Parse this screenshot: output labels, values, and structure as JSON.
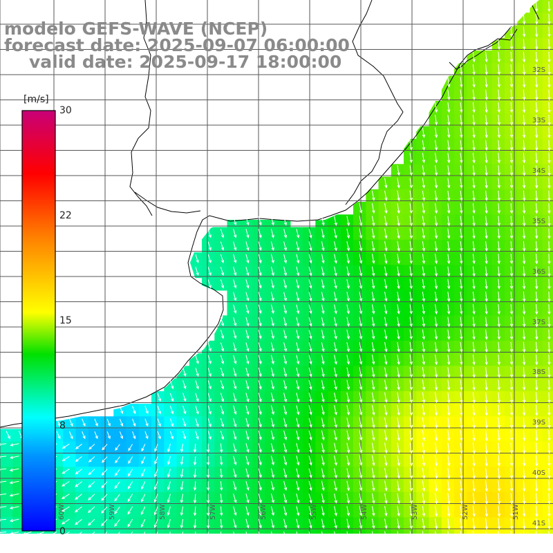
{
  "title": {
    "line1": "modelo GEFS-WAVE (NCEP)",
    "line2": "forecast date: 2025-09-07 06:00:00",
    "line3": "valid date: 2025-09-17 18:00:00"
  },
  "colorbar": {
    "unit": "[m/s]",
    "ticks": [
      "0",
      "8",
      "15",
      "22",
      "30"
    ],
    "min": 0,
    "max": 30,
    "stops": [
      "#0000ff",
      "#00c8ff",
      "#00ffff",
      "#00e000",
      "#ffff00",
      "#ff7f00",
      "#ff0000",
      "#c80078"
    ]
  },
  "axes": {
    "lat_labels": [
      "32S",
      "33S",
      "34S",
      "35S",
      "36S",
      "37S",
      "38S",
      "39S",
      "40S",
      "41S"
    ],
    "lon_labels": [
      "60W",
      "59W",
      "58W",
      "57W",
      "56W",
      "55W",
      "54W",
      "53W",
      "52W",
      "51W"
    ]
  },
  "colors": {
    "land": "#ffffff",
    "grid": "#555555",
    "coast": "#000000",
    "arrow": "#ffffff"
  }
}
